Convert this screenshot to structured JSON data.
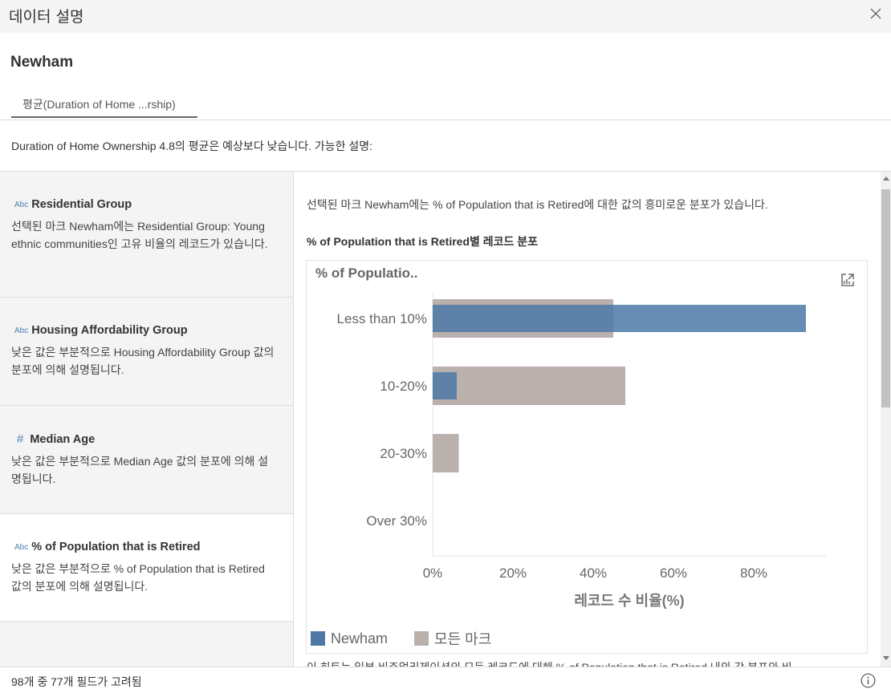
{
  "window": {
    "title": "데이터 설명"
  },
  "header": {
    "mark_name": "Newham",
    "tab_label": "평균(Duration of Home ...rship)"
  },
  "summary": "Duration of Home Ownership 4.8의 평균은 예상보다 낮습니다. 가능한 설명:",
  "explanations": [
    {
      "type": "Abc",
      "title": "Residential Group",
      "description": "선택된 마크 Newham에는 Residential Group: Young ethnic communities인 고유 비율의 레코드가 있습니다."
    },
    {
      "type": "Abc",
      "title": "Housing Affordability Group",
      "description": "낮은 값은 부분적으로 Housing Affordability Group 값의 분포에 의해 설명됩니다."
    },
    {
      "type": "#",
      "title": "Median Age",
      "description": "낮은 값은 부분적으로 Median Age 값의 분포에 의해 설명됩니다."
    },
    {
      "type": "Abc",
      "title": "% of Population that is Retired",
      "description": "낮은 값은 부분적으로 % of Population that is Retired 값의 분포에 의해 설명됩니다."
    }
  ],
  "detail": {
    "intro": "선택된 마크 Newham에는 % of Population that is Retired에 대한 값의 흥미로운 분포가 있습니다.",
    "chart_heading": "% of Population that is Retired별 레코드 분포",
    "footnote": "이 히트는 일부 비주얼리제이션의 모든 레코드에 대해 % of Population that is Retired 내의 각 분포와 비"
  },
  "chart_data": {
    "type": "bar",
    "orientation": "horizontal",
    "title": "% of Populatio..",
    "categories": [
      "Less than 10%",
      "10-20%",
      "20-30%",
      "Over 30%"
    ],
    "series": [
      {
        "name": "Newham",
        "color": "#4e79a7",
        "values": [
          93,
          6,
          0,
          0
        ]
      },
      {
        "name": "모든 마크",
        "color": "#bab0ac",
        "values": [
          45,
          48,
          6.5,
          0
        ]
      }
    ],
    "xlabel": "레코드 수 비율(%)",
    "xlim": [
      0,
      100
    ],
    "xticks": [
      0,
      20,
      40,
      60,
      80
    ],
    "xtick_labels": [
      "0%",
      "20%",
      "40%",
      "60%",
      "80%"
    ],
    "legend_position": "bottom-left"
  },
  "footer": {
    "fields_considered": "98개 중 77개 필드가 고려됨"
  },
  "icons": {
    "close": "close-icon",
    "export": "export-chart-icon",
    "info": "info-icon"
  }
}
